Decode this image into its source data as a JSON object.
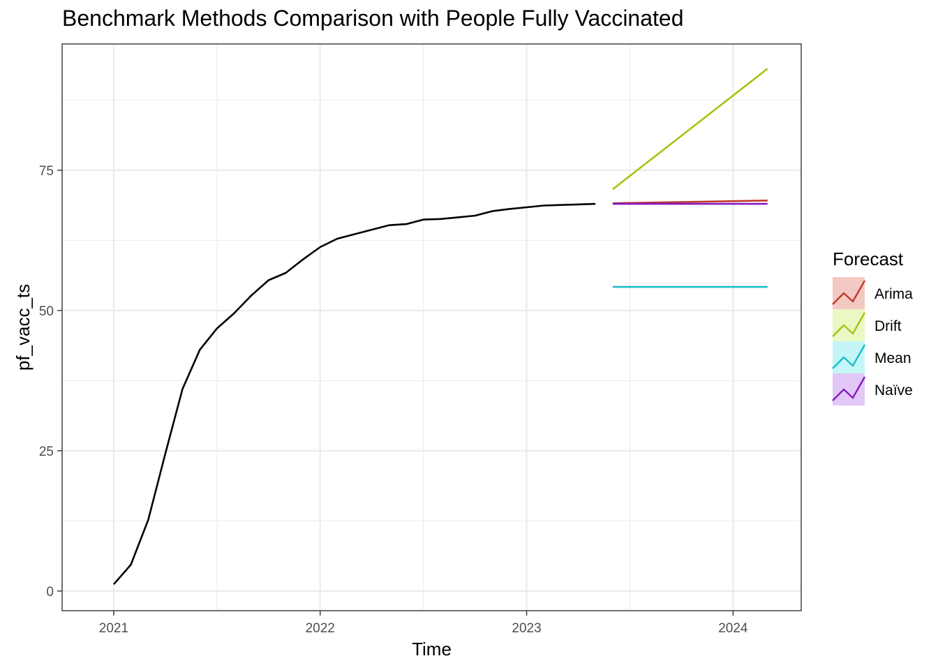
{
  "chart_data": {
    "type": "line",
    "title": "Benchmark Methods Comparison with People Fully Vaccinated",
    "xlabel": "Time",
    "ylabel": "pf_vacc_ts",
    "xlim": [
      2020.75,
      2024.33
    ],
    "ylim": [
      -3.5,
      97.5
    ],
    "x_ticks": [
      2021,
      2022,
      2023,
      2024
    ],
    "x_tick_labels": [
      "2021",
      "2022",
      "2023",
      "2024"
    ],
    "y_ticks": [
      0,
      25,
      50,
      75
    ],
    "y_tick_labels": [
      "0",
      "25",
      "50",
      "75"
    ],
    "grid": true,
    "legend": {
      "title": "Forecast",
      "position": "right"
    },
    "series": [
      {
        "name": "pf_vacc_ts",
        "color": "#000000",
        "points": [
          [
            2021.0,
            1.2
          ],
          [
            2021.083,
            4.7
          ],
          [
            2021.167,
            12.7
          ],
          [
            2021.25,
            24.5
          ],
          [
            2021.333,
            36.0
          ],
          [
            2021.417,
            43.0
          ],
          [
            2021.5,
            46.8
          ],
          [
            2021.583,
            49.5
          ],
          [
            2021.667,
            52.7
          ],
          [
            2021.75,
            55.4
          ],
          [
            2021.833,
            56.7
          ],
          [
            2021.917,
            59.1
          ],
          [
            2022.0,
            61.3
          ],
          [
            2022.083,
            62.8
          ],
          [
            2022.167,
            63.6
          ],
          [
            2022.25,
            64.4
          ],
          [
            2022.333,
            65.2
          ],
          [
            2022.417,
            65.4
          ],
          [
            2022.5,
            66.2
          ],
          [
            2022.583,
            66.3
          ],
          [
            2022.667,
            66.6
          ],
          [
            2022.75,
            66.9
          ],
          [
            2022.833,
            67.7
          ],
          [
            2022.917,
            68.1
          ],
          [
            2023.0,
            68.4
          ],
          [
            2023.083,
            68.7
          ],
          [
            2023.167,
            68.8
          ],
          [
            2023.25,
            68.9
          ],
          [
            2023.333,
            69.0
          ]
        ]
      },
      {
        "name": "Arima",
        "color": "#c0392b",
        "fill": "#f4c9c4",
        "points": [
          [
            2023.417,
            69.1
          ],
          [
            2024.167,
            69.6
          ]
        ]
      },
      {
        "name": "Drift",
        "color": "#a3c310",
        "fill": "#eaf8c4",
        "points": [
          [
            2023.417,
            71.6
          ],
          [
            2024.167,
            93.1
          ]
        ]
      },
      {
        "name": "Mean",
        "color": "#18bcc8",
        "fill": "#c4f6f8",
        "points": [
          [
            2023.417,
            54.2
          ],
          [
            2024.167,
            54.2
          ]
        ]
      },
      {
        "name": "Naïve",
        "color": "#8419c0",
        "fill": "#e2c8f6",
        "points": [
          [
            2023.417,
            69.0
          ],
          [
            2024.167,
            69.0
          ]
        ]
      }
    ]
  }
}
